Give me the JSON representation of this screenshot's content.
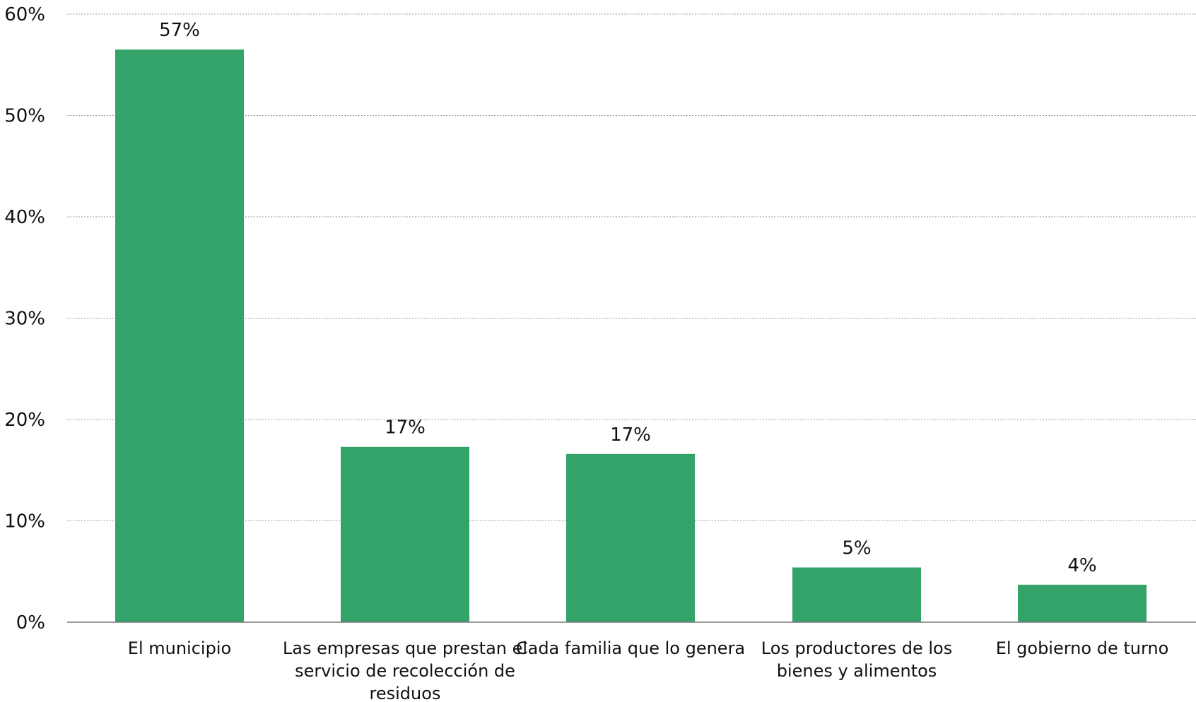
{
  "chart_data": {
    "type": "bar",
    "categories": [
      "El municipio",
      "Las empresas que prestan el servicio de recolección de residuos",
      "Cada familia que lo genera",
      "Los productores de los bienes y alimentos",
      "El gobierno de turno"
    ],
    "category_lines": [
      [
        "El municipio"
      ],
      [
        "Las empresas que prestan el",
        "servicio de recolección de",
        "residuos"
      ],
      [
        "Cada familia que lo genera"
      ],
      [
        "Los productores de los",
        "bienes y alimentos"
      ],
      [
        "El gobierno de turno"
      ]
    ],
    "values": [
      56.5,
      17.3,
      16.6,
      5.4,
      3.7
    ],
    "data_labels": [
      "57%",
      "17%",
      "17%",
      "5%",
      "4%"
    ],
    "ylim": [
      0,
      60
    ],
    "yticks": [
      0,
      10,
      20,
      30,
      40,
      50,
      60
    ],
    "ytick_labels": [
      "0%",
      "10%",
      "20%",
      "30%",
      "40%",
      "50%",
      "60%"
    ],
    "title": "",
    "xlabel": "",
    "ylabel": "",
    "grid": true,
    "legend": "none",
    "bar_color": "#33a36a"
  }
}
